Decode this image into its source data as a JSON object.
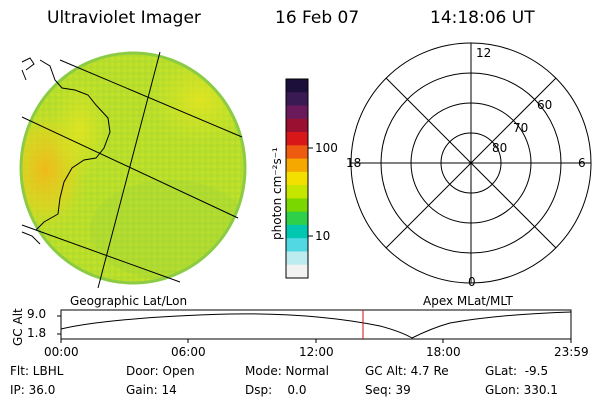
{
  "header": {
    "instrument": "Ultraviolet Imager",
    "date": "16 Feb 07",
    "time": "14:18:06 UT"
  },
  "colorbar": {
    "unit_label": "photon cm⁻²s⁻¹",
    "ticks": [
      "100",
      "10"
    ],
    "colors": [
      "#1c0f3a",
      "#3a1a52",
      "#6a1a5a",
      "#9a1030",
      "#d81818",
      "#ee5a10",
      "#f5a800",
      "#f3e000",
      "#c6e600",
      "#7ad800",
      "#2ed04a",
      "#00c8b0",
      "#52d8e2",
      "#bcecf0",
      "#f2f2f2"
    ]
  },
  "image_panel": {
    "label": "Geographic Lat/Lon",
    "base_color": "#b8de2a",
    "edge_color": "#8ccc44",
    "hot_color": "#f2b81a"
  },
  "polar_plot": {
    "label": "Apex MLat/MLT",
    "mlt_labels": {
      "top": "12",
      "right": "6",
      "bottom": "0",
      "left": "18"
    },
    "mlat_labels": [
      "60",
      "70",
      "80"
    ]
  },
  "altitude_plot": {
    "ylabel": "GC Alt",
    "ytick_top": "9.0",
    "ytick_bottom": "1.8",
    "xticks": [
      "00:00",
      "06:00",
      "12:00",
      "18:00",
      "23:59"
    ],
    "marker_color": "#d01010"
  },
  "status": {
    "row1": {
      "flt": "Flt: LBHL",
      "door": "Door: Open",
      "mode": "Mode: Normal",
      "gc_alt": "GC Alt: 4.7 Re",
      "glat": "GLat:  -9.5"
    },
    "row2": {
      "ip": "IP: 36.0",
      "gain": "Gain: 14",
      "dsp": "Dsp:    0.0",
      "seq": "Seq: 39",
      "glon": "GLon: 330.1"
    }
  }
}
